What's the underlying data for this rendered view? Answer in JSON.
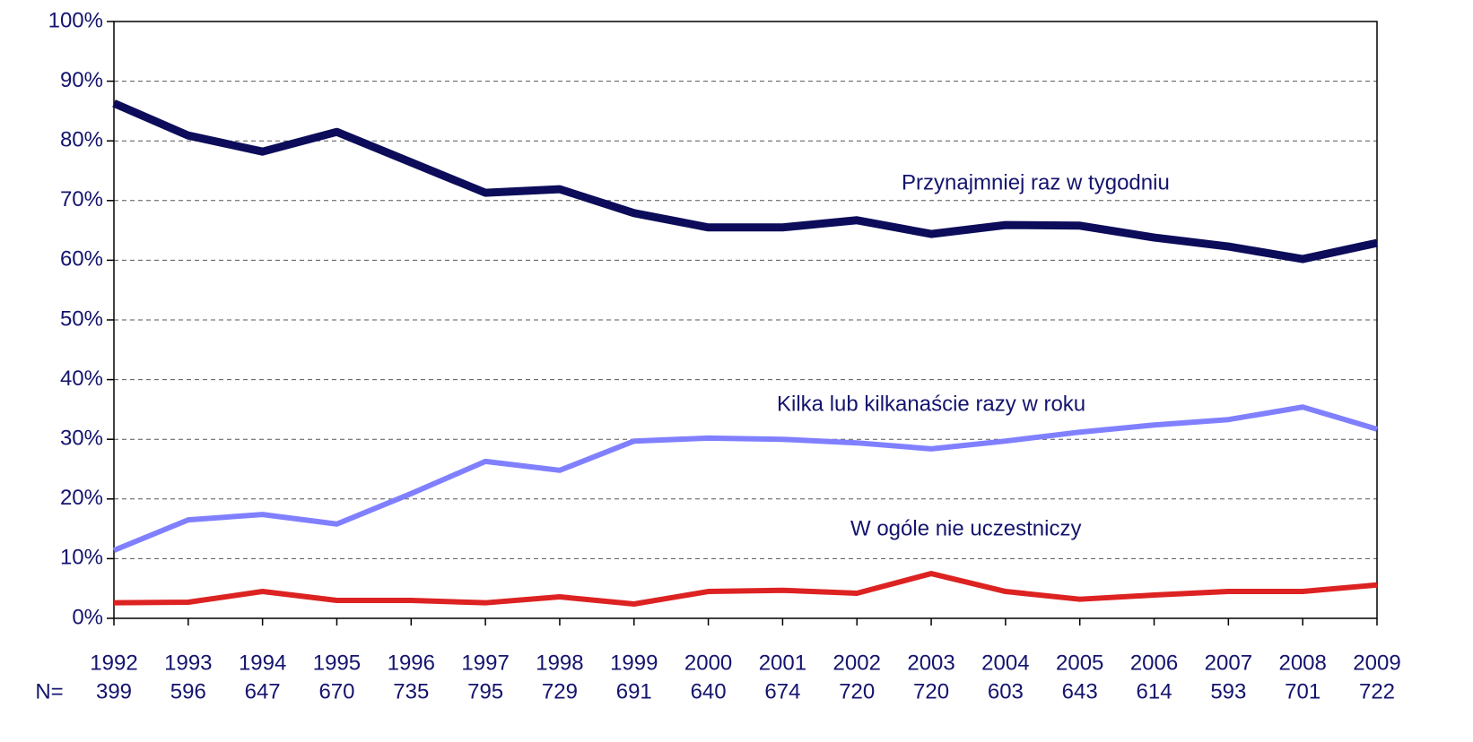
{
  "chart_data": {
    "type": "line",
    "categories": [
      "1992",
      "1993",
      "1994",
      "1995",
      "1996",
      "1997",
      "1998",
      "1999",
      "2000",
      "2001",
      "2002",
      "2003",
      "2004",
      "2005",
      "2006",
      "2007",
      "2008",
      "2009"
    ],
    "n_label": "N=",
    "n_values": [
      399,
      596,
      647,
      670,
      735,
      795,
      729,
      691,
      640,
      674,
      720,
      720,
      603,
      643,
      614,
      593,
      701,
      722
    ],
    "series": [
      {
        "name": "Przynajmniej raz w tygodniu",
        "color": "#0c0c5a",
        "values": [
          86.3,
          80.9,
          78.2,
          81.5,
          76.4,
          71.3,
          71.9,
          67.9,
          65.5,
          65.5,
          66.7,
          64.4,
          65.9,
          65.8,
          63.8,
          62.3,
          60.2,
          62.9
        ]
      },
      {
        "name": "Kilka lub kilkanaście razy w roku",
        "color": "#8080ff",
        "values": [
          11.4,
          16.5,
          17.4,
          15.8,
          20.9,
          26.3,
          24.8,
          29.7,
          30.2,
          30.0,
          29.4,
          28.4,
          29.7,
          31.2,
          32.4,
          33.3,
          35.4,
          31.7
        ]
      },
      {
        "name": "W ogóle nie uczestniczy",
        "color": "#dd2222",
        "values": [
          2.6,
          2.7,
          4.5,
          3.0,
          3.0,
          2.6,
          3.6,
          2.4,
          4.5,
          4.7,
          4.2,
          7.5,
          4.5,
          3.2,
          3.9,
          4.5,
          4.5,
          5.6
        ]
      }
    ],
    "ylim": [
      0,
      100
    ],
    "yticks": [
      {
        "value": 0,
        "label": "0%"
      },
      {
        "value": 10,
        "label": "10%"
      },
      {
        "value": 20,
        "label": "20%"
      },
      {
        "value": 30,
        "label": "30%"
      },
      {
        "value": 40,
        "label": "40%"
      },
      {
        "value": 50,
        "label": "50%"
      },
      {
        "value": 60,
        "label": "60%"
      },
      {
        "value": 70,
        "label": "70%"
      },
      {
        "value": 80,
        "label": "80%"
      },
      {
        "value": 90,
        "label": "90%"
      },
      {
        "value": 100,
        "label": "100%"
      }
    ],
    "grid": true
  }
}
